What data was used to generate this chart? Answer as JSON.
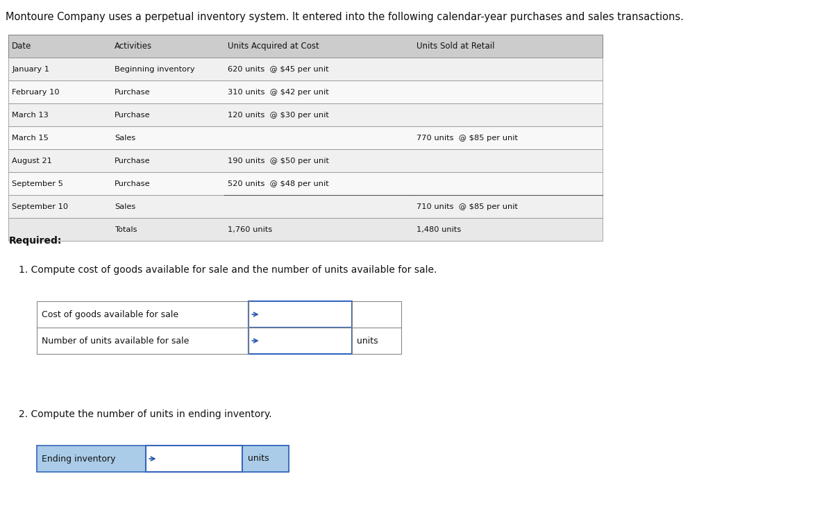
{
  "title": "Montoure Company uses a perpetual inventory system. It entered into the following calendar-year purchases and sales transactions.",
  "bg_color": "#ffffff",
  "table_header_bg": "#d0d0d0",
  "table_row_alt_bg": "#e8e8e8",
  "table_border_color": "#888888",
  "table_dates": [
    "January 1",
    "February 10",
    "March 13",
    "March 15",
    "August 21",
    "September 5",
    "September 10",
    ""
  ],
  "table_activities": [
    "Beginning inventory",
    "Purchase",
    "Purchase",
    "Sales",
    "Purchase",
    "Purchase",
    "Sales",
    "Totals"
  ],
  "table_units_acquired": [
    "620 units  @ $45 per unit",
    "310 units  @ $42 per unit",
    "120 units  @ $30 per unit",
    "",
    "190 units  @ $50 per unit",
    "520 units  @ $48 per unit",
    "",
    "1,760 units"
  ],
  "table_units_sold": [
    "",
    "",
    "",
    "770 units  @ $85 per unit",
    "",
    "",
    "710 units  @ $85 per unit",
    "1,480 units"
  ],
  "col_headers": [
    "Date",
    "Activities",
    "Units Acquired at Cost",
    "Units Sold at Retail"
  ],
  "required_text": "Required:",
  "q1_text": "1. Compute cost of goods available for sale and the number of units available for sale.",
  "q1_rows": [
    "Cost of goods available for sale",
    "Number of units available for sale"
  ],
  "q1_suffix": [
    "",
    "units"
  ],
  "q2_text": "2. Compute the number of units in ending inventory.",
  "q2_label": "Ending inventory",
  "q2_suffix": "units",
  "input_box_color": "#aacce8",
  "input_fill_color": "#ffffff",
  "arrow_color": "#2255aa"
}
